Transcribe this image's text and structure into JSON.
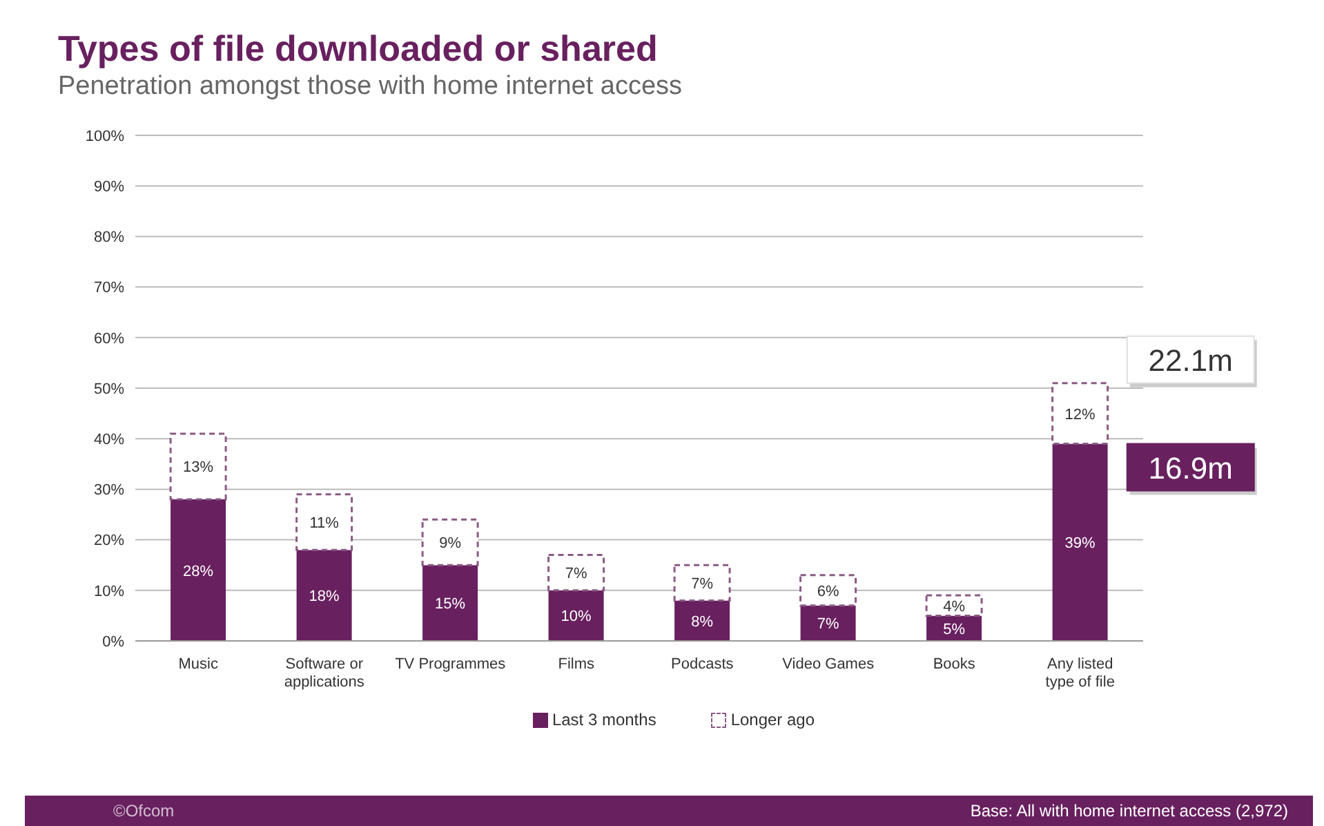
{
  "chart_data": {
    "type": "bar",
    "title": "Types of file downloaded or shared",
    "subtitle": "Penetration amongst those with home internet access",
    "categories": [
      "Music",
      "Software or applications",
      "TV Programmes",
      "Films",
      "Podcasts",
      "Video Games",
      "Books",
      "Any listed type of file"
    ],
    "stacked": true,
    "series": [
      {
        "name": "Last 3 months",
        "color": "#68205f",
        "values": [
          28,
          18,
          15,
          10,
          8,
          7,
          5,
          39
        ],
        "value_labels": [
          "28%",
          "18%",
          "15%",
          "10%",
          "8%",
          "7%",
          "5%",
          "39%"
        ]
      },
      {
        "name": "Longer ago",
        "color": "#ffffff",
        "values": [
          13,
          11,
          9,
          7,
          7,
          6,
          4,
          12
        ],
        "value_labels": [
          "13%",
          "11%",
          "9%",
          "7%",
          "7%",
          "6%",
          "4%",
          "12%"
        ],
        "line_style": "dashed"
      }
    ],
    "ylim": [
      0,
      100
    ],
    "yticks": [
      {
        "value": 0,
        "label": "0%"
      },
      {
        "value": 10,
        "label": "10%"
      },
      {
        "value": 20,
        "label": "20%"
      },
      {
        "value": 30,
        "label": "30%"
      },
      {
        "value": 40,
        "label": "40%"
      },
      {
        "value": 50,
        "label": "50%"
      },
      {
        "value": 60,
        "label": "60%"
      },
      {
        "value": 70,
        "label": "70%"
      },
      {
        "value": 80,
        "label": "80%"
      },
      {
        "value": 90,
        "label": "90%"
      },
      {
        "value": 100,
        "label": "100%"
      }
    ],
    "grid": "y",
    "legend": "bottom",
    "annotations": [
      {
        "text": "22.1m",
        "x": "Any listed type of file",
        "y": 51
      },
      {
        "text": "16.9m",
        "x": "Any listed type of file",
        "y": 39
      },
      "©Ofcom",
      "Base: All with home internet access (2,972)"
    ]
  }
}
